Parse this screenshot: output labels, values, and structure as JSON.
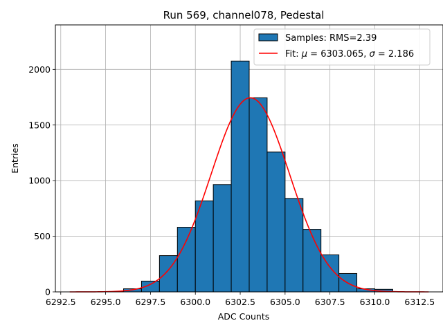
{
  "chart_data": {
    "type": "bar",
    "title": "Run 569, channel078, Pedestal",
    "xlabel": "ADC Counts",
    "ylabel": "Entries",
    "xlim": [
      6292.2,
      6313.8
    ],
    "ylim": [
      0,
      2400
    ],
    "xticks": [
      6292.5,
      6295.0,
      6297.5,
      6300.0,
      6302.5,
      6305.0,
      6307.5,
      6310.0,
      6312.5
    ],
    "xtick_labels": [
      "6292.5",
      "6295.0",
      "6297.5",
      "6300.0",
      "6302.5",
      "6305.0",
      "6307.5",
      "6310.0",
      "6312.5"
    ],
    "yticks": [
      0,
      500,
      1000,
      1500,
      2000
    ],
    "ytick_labels": [
      "0",
      "500",
      "1000",
      "1500",
      "2000"
    ],
    "grid": true,
    "legend_position": "top-right",
    "bin_width": 1,
    "series": [
      {
        "name": "Samples: RMS=2.39",
        "kind": "histogram",
        "color": "#1f77b4",
        "edgecolor": "#000000",
        "bins": [
          {
            "left": 6295,
            "right": 6296,
            "count": 3
          },
          {
            "left": 6296,
            "right": 6297,
            "count": 28
          },
          {
            "left": 6297,
            "right": 6298,
            "count": 97
          },
          {
            "left": 6298,
            "right": 6299,
            "count": 326
          },
          {
            "left": 6299,
            "right": 6300,
            "count": 581
          },
          {
            "left": 6300,
            "right": 6301,
            "count": 818
          },
          {
            "left": 6301,
            "right": 6302,
            "count": 965
          },
          {
            "left": 6302,
            "right": 6303,
            "count": 2075
          },
          {
            "left": 6303,
            "right": 6304,
            "count": 1745
          },
          {
            "left": 6304,
            "right": 6305,
            "count": 1257
          },
          {
            "left": 6305,
            "right": 6306,
            "count": 840
          },
          {
            "left": 6306,
            "right": 6307,
            "count": 562
          },
          {
            "left": 6307,
            "right": 6308,
            "count": 333
          },
          {
            "left": 6308,
            "right": 6309,
            "count": 165
          },
          {
            "left": 6309,
            "right": 6310,
            "count": 28
          },
          {
            "left": 6310,
            "right": 6311,
            "count": 23
          }
        ]
      },
      {
        "name": "Fit: μ = 6303.065, σ = 2.186",
        "name_prefix": "Fit: ",
        "name_mu": "μ",
        "name_mu_value": " = 6303.065, ",
        "name_sigma": "σ",
        "name_sigma_value": " = 2.186",
        "kind": "gaussian",
        "color": "#ff0000",
        "mu": 6303.065,
        "sigma": 2.186,
        "amplitude": 1745,
        "x_range": [
          6293,
          6313
        ]
      }
    ]
  }
}
